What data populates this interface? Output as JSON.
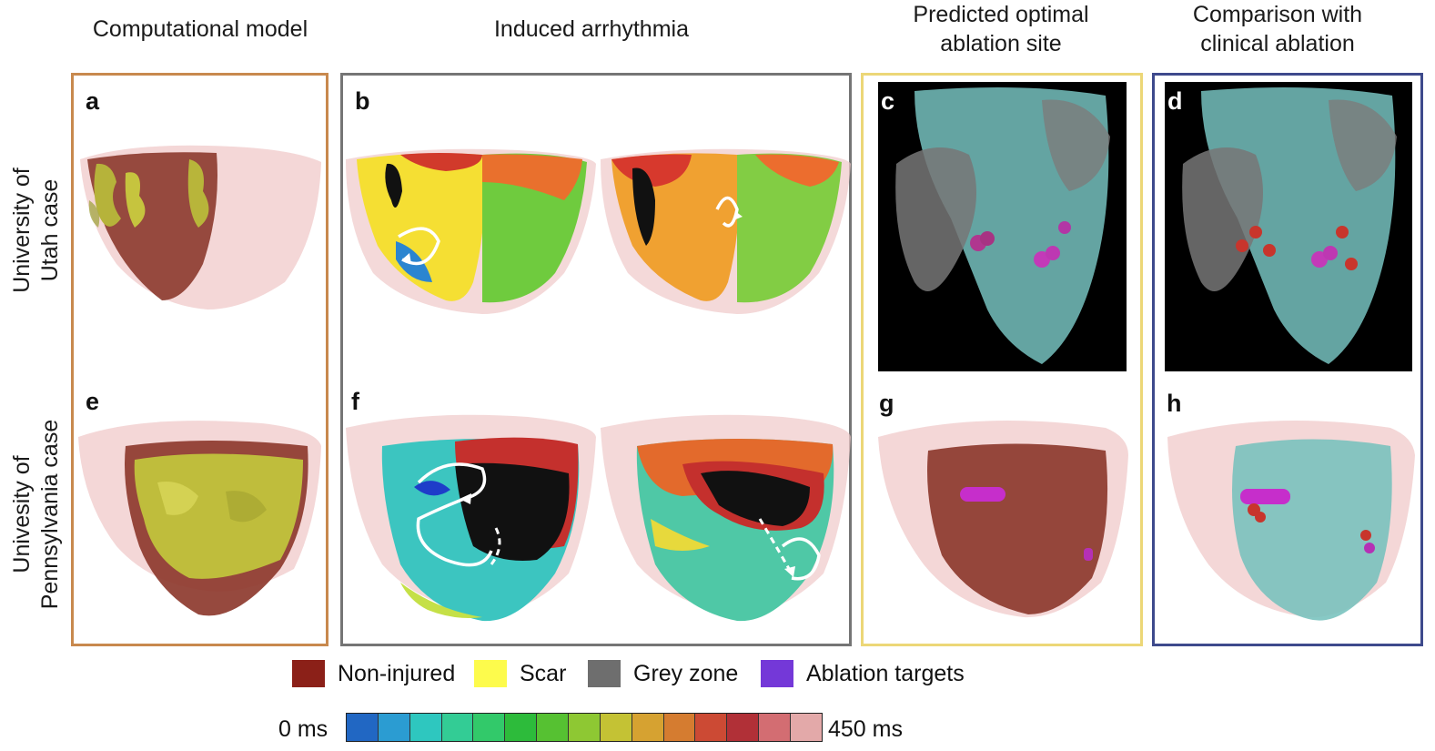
{
  "columns": [
    {
      "id": "computational-model",
      "title": "Computational model"
    },
    {
      "id": "induced-arrhythmia",
      "title": "Induced arrhythmia"
    },
    {
      "id": "predicted-site",
      "title": "Predicted optimal\nablation site"
    },
    {
      "id": "comparison",
      "title": "Comparison with\nclinical ablation"
    }
  ],
  "rows": [
    {
      "id": "utah",
      "label": "University of\nUtah case"
    },
    {
      "id": "penn",
      "label": "Univesity of\nPennsylvania case"
    }
  ],
  "panels": {
    "a": "a",
    "b": "b",
    "c": "c",
    "d": "d",
    "e": "e",
    "f": "f",
    "g": "g",
    "h": "h"
  },
  "colors": {
    "frame_computational": "#c8894e",
    "frame_arrhythmia": "#757575",
    "frame_predicted": "#ecd777",
    "frame_comparison": "#3e4a8c",
    "non_injured": "#8b2018",
    "scar": "#fdfb4c",
    "grey_zone": "#6e6e6e",
    "ablation_targets": "#7438d8"
  },
  "legend": [
    {
      "label": "Non-injured",
      "color": "#8b2018"
    },
    {
      "label": "Scar",
      "color": "#fdfb4c"
    },
    {
      "label": "Grey zone",
      "color": "#6e6e6e"
    },
    {
      "label": "Ablation targets",
      "color": "#7438d8"
    }
  ],
  "colorbar": {
    "min_label": "0 ms",
    "max_label": "450 ms",
    "colors": [
      "#2167c3",
      "#2b9cd2",
      "#2ec7bf",
      "#33cc95",
      "#32c96a",
      "#2dbb3b",
      "#56c132",
      "#8ec833",
      "#c4c234",
      "#d6a231",
      "#d57c30",
      "#cc4a34",
      "#b13037",
      "#d36d72",
      "#e3a9a9"
    ]
  }
}
